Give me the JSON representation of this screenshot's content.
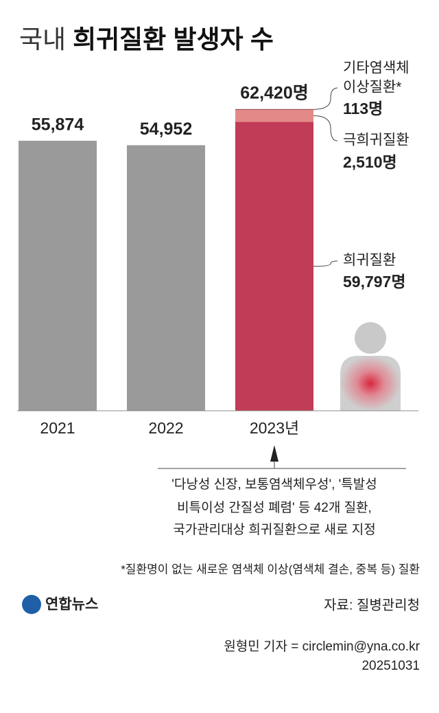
{
  "chart_data": {
    "type": "bar",
    "title_parts": [
      "국내",
      "희귀질환 발생자 수"
    ],
    "categories": [
      "2021",
      "2022",
      "2023년"
    ],
    "values": [
      55874,
      54952,
      62420
    ],
    "value_labels": [
      "55,874",
      "54,952",
      "62,420명"
    ],
    "color": "#9a9a9a",
    "ylim": [
      0,
      85000
    ],
    "segments": [
      {
        "name": [
          "희귀질환"
        ],
        "color": "#c13c56",
        "value": 59797,
        "value_label": "59,797명"
      },
      {
        "name": [
          "극희귀질환"
        ],
        "color": "#e38a88",
        "value": 2510,
        "value_label": "2,510명"
      },
      {
        "name": [
          "기타염색체",
          "이상질환*"
        ],
        "color": "#6b1e2c",
        "value": 113,
        "value_label": "113명"
      }
    ],
    "notes": [
      "'다낭성 신장, 보통염색체우성', '특발성",
      "비특이성 간질성 폐렴' 등 42개 질환,",
      "국가관리대상 희귀질환으로 새로 지정"
    ],
    "footnote": "*질환명이 없는 새로운 염색체 이상(염색체 결손, 중복 등) 질환",
    "logo": "연합뉴스",
    "source": "자료: 질병관리청",
    "credit": [
      "원형민 기자 = circlemin@yna.co.kr",
      "20251031"
    ]
  }
}
